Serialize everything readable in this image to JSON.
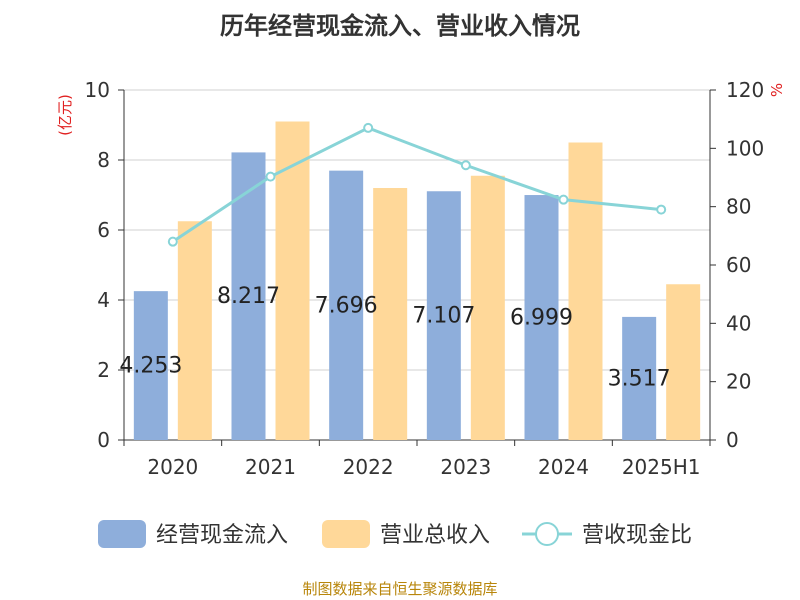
{
  "chart_data": {
    "type": "bar",
    "title": "历年经营现金流入、营业收入情况",
    "categories": [
      "2020",
      "2021",
      "2022",
      "2023",
      "2024",
      "2025H1"
    ],
    "y_left_label": "(亿元)",
    "y_right_label": "%",
    "y_left_range": [
      0,
      10
    ],
    "y_left_ticks": [
      "0",
      "2",
      "4",
      "6",
      "8",
      "10"
    ],
    "y_right_range": [
      0,
      120
    ],
    "y_right_ticks": [
      "0",
      "20",
      "40",
      "60",
      "80",
      "100",
      "120"
    ],
    "grid": true,
    "legend_position": "bottom",
    "series": [
      {
        "name": "经营现金流入",
        "kind": "bar",
        "axis": "left",
        "color": "#8eaedb",
        "values": [
          4.253,
          8.217,
          7.696,
          7.107,
          6.999,
          3.517
        ],
        "labels": [
          "4.253",
          "8.217",
          "7.696",
          "7.107",
          "6.999",
          "3.517"
        ]
      },
      {
        "name": "营业总收入",
        "kind": "bar",
        "axis": "left",
        "color": "#ffd899",
        "values": [
          6.25,
          9.1,
          7.2,
          7.55,
          8.5,
          4.45
        ]
      },
      {
        "name": "营收现金比",
        "kind": "line",
        "axis": "right",
        "color": "#88d4d7",
        "values": [
          68,
          90.3,
          107,
          94.2,
          82.4,
          79
        ]
      }
    ]
  },
  "source": "制图数据来自恒生聚源数据库"
}
